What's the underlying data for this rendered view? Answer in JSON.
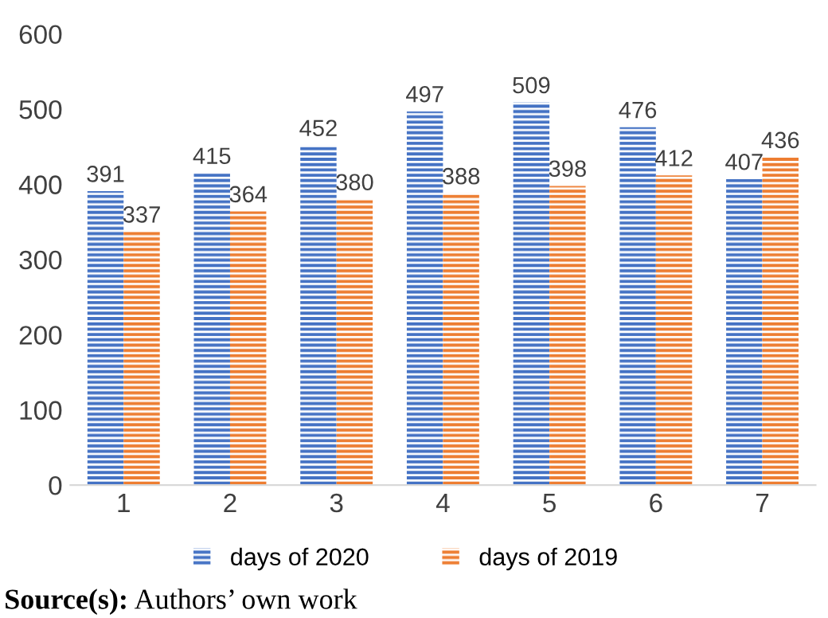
{
  "chart_data": {
    "type": "bar",
    "categories": [
      "1",
      "2",
      "3",
      "4",
      "5",
      "6",
      "7"
    ],
    "series": [
      {
        "name": "days of 2020",
        "color": "#4472c4",
        "values": [
          391,
          415,
          452,
          497,
          509,
          476,
          407
        ]
      },
      {
        "name": "days of 2019",
        "color": "#ed7d31",
        "values": [
          337,
          364,
          380,
          388,
          398,
          412,
          436
        ]
      }
    ],
    "ylim": [
      0,
      600
    ],
    "yticks": [
      0,
      100,
      200,
      300,
      400,
      500,
      600
    ],
    "grid": false,
    "legend": "bottom",
    "data_labels": true,
    "annotations": [
      "Source(s): Authors’ own work"
    ]
  }
}
